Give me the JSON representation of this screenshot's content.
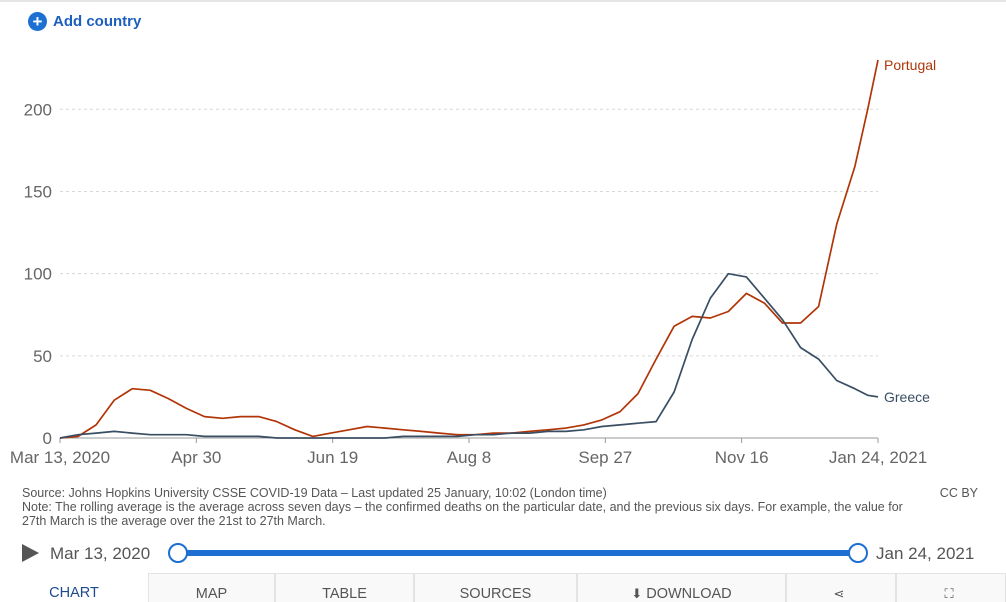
{
  "controls": {
    "add_country_label": "Add country"
  },
  "chart_data": {
    "type": "line",
    "x_start": "2020-03-13",
    "x_end": "2021-01-24",
    "x_tick_labels": [
      "Mar 13, 2020",
      "Apr 30",
      "Jun 19",
      "Aug 8",
      "Sep 27",
      "Nov 16",
      "Jan 24, 2021"
    ],
    "y_tick_labels": [
      "0",
      "50",
      "100",
      "150",
      "200"
    ],
    "ylim": [
      0,
      230
    ],
    "grid": "horizontal-dashed",
    "series": [
      {
        "name": "Portugal",
        "color": "#b13507",
        "x": [
          "2020-03-13",
          "2020-03-20",
          "2020-03-27",
          "2020-04-03",
          "2020-04-10",
          "2020-04-17",
          "2020-04-24",
          "2020-05-01",
          "2020-05-08",
          "2020-05-15",
          "2020-05-22",
          "2020-05-29",
          "2020-06-05",
          "2020-06-12",
          "2020-06-19",
          "2020-06-26",
          "2020-07-03",
          "2020-07-10",
          "2020-07-17",
          "2020-07-24",
          "2020-07-31",
          "2020-08-07",
          "2020-08-14",
          "2020-08-21",
          "2020-08-28",
          "2020-09-04",
          "2020-09-11",
          "2020-09-18",
          "2020-09-25",
          "2020-10-02",
          "2020-10-09",
          "2020-10-16",
          "2020-10-23",
          "2020-10-30",
          "2020-11-06",
          "2020-11-13",
          "2020-11-20",
          "2020-11-27",
          "2020-12-04",
          "2020-12-11",
          "2020-12-18",
          "2020-12-25",
          "2021-01-01",
          "2021-01-08",
          "2021-01-15",
          "2021-01-20",
          "2021-01-24"
        ],
        "values": [
          0,
          1,
          8,
          23,
          30,
          29,
          24,
          18,
          13,
          12,
          13,
          13,
          10,
          5,
          1,
          3,
          5,
          7,
          6,
          5,
          4,
          3,
          2,
          2,
          3,
          3,
          4,
          5,
          6,
          8,
          11,
          16,
          27,
          48,
          68,
          74,
          73,
          77,
          88,
          82,
          70,
          70,
          80,
          130,
          165,
          200,
          230
        ]
      },
      {
        "name": "Greece",
        "color": "#3a4e63",
        "x": [
          "2020-03-13",
          "2020-03-20",
          "2020-03-27",
          "2020-04-03",
          "2020-04-10",
          "2020-04-17",
          "2020-04-24",
          "2020-05-01",
          "2020-05-08",
          "2020-05-15",
          "2020-05-22",
          "2020-05-29",
          "2020-06-05",
          "2020-06-12",
          "2020-06-19",
          "2020-06-26",
          "2020-07-03",
          "2020-07-10",
          "2020-07-17",
          "2020-07-24",
          "2020-07-31",
          "2020-08-07",
          "2020-08-14",
          "2020-08-21",
          "2020-08-28",
          "2020-09-04",
          "2020-09-11",
          "2020-09-18",
          "2020-09-25",
          "2020-10-02",
          "2020-10-09",
          "2020-10-16",
          "2020-10-23",
          "2020-10-30",
          "2020-11-06",
          "2020-11-13",
          "2020-11-20",
          "2020-11-27",
          "2020-12-04",
          "2020-12-11",
          "2020-12-18",
          "2020-12-25",
          "2021-01-01",
          "2021-01-08",
          "2021-01-15",
          "2021-01-20",
          "2021-01-24"
        ],
        "values": [
          0,
          2,
          3,
          4,
          3,
          2,
          2,
          2,
          1,
          1,
          1,
          1,
          0,
          0,
          0,
          0,
          0,
          0,
          0,
          1,
          1,
          1,
          1,
          2,
          2,
          3,
          3,
          4,
          4,
          5,
          7,
          8,
          9,
          10,
          28,
          60,
          85,
          100,
          98,
          85,
          72,
          55,
          48,
          35,
          30,
          26,
          25
        ]
      }
    ]
  },
  "footer": {
    "source": "Source: Johns Hopkins University CSSE COVID-19 Data – Last updated 25 January, 10:02 (London time)",
    "note": "Note: The rolling average is the average across seven days – the confirmed deaths on the particular date, and the previous six days. For example, the value for 27th March is the average over the 21st to 27th March.",
    "license": "CC BY"
  },
  "timeline": {
    "start_label": "Mar 13, 2020",
    "end_label": "Jan 24, 2021",
    "range_start": 0,
    "range_end": 1
  },
  "tabs": [
    {
      "label": "CHART",
      "icon": ""
    },
    {
      "label": "MAP",
      "icon": ""
    },
    {
      "label": "TABLE",
      "icon": ""
    },
    {
      "label": "SOURCES",
      "icon": ""
    },
    {
      "label": "DOWNLOAD",
      "icon": "download-icon"
    },
    {
      "label": "",
      "icon": "share-icon"
    },
    {
      "label": "",
      "icon": "fullscreen-icon"
    }
  ],
  "active_tab": "CHART"
}
